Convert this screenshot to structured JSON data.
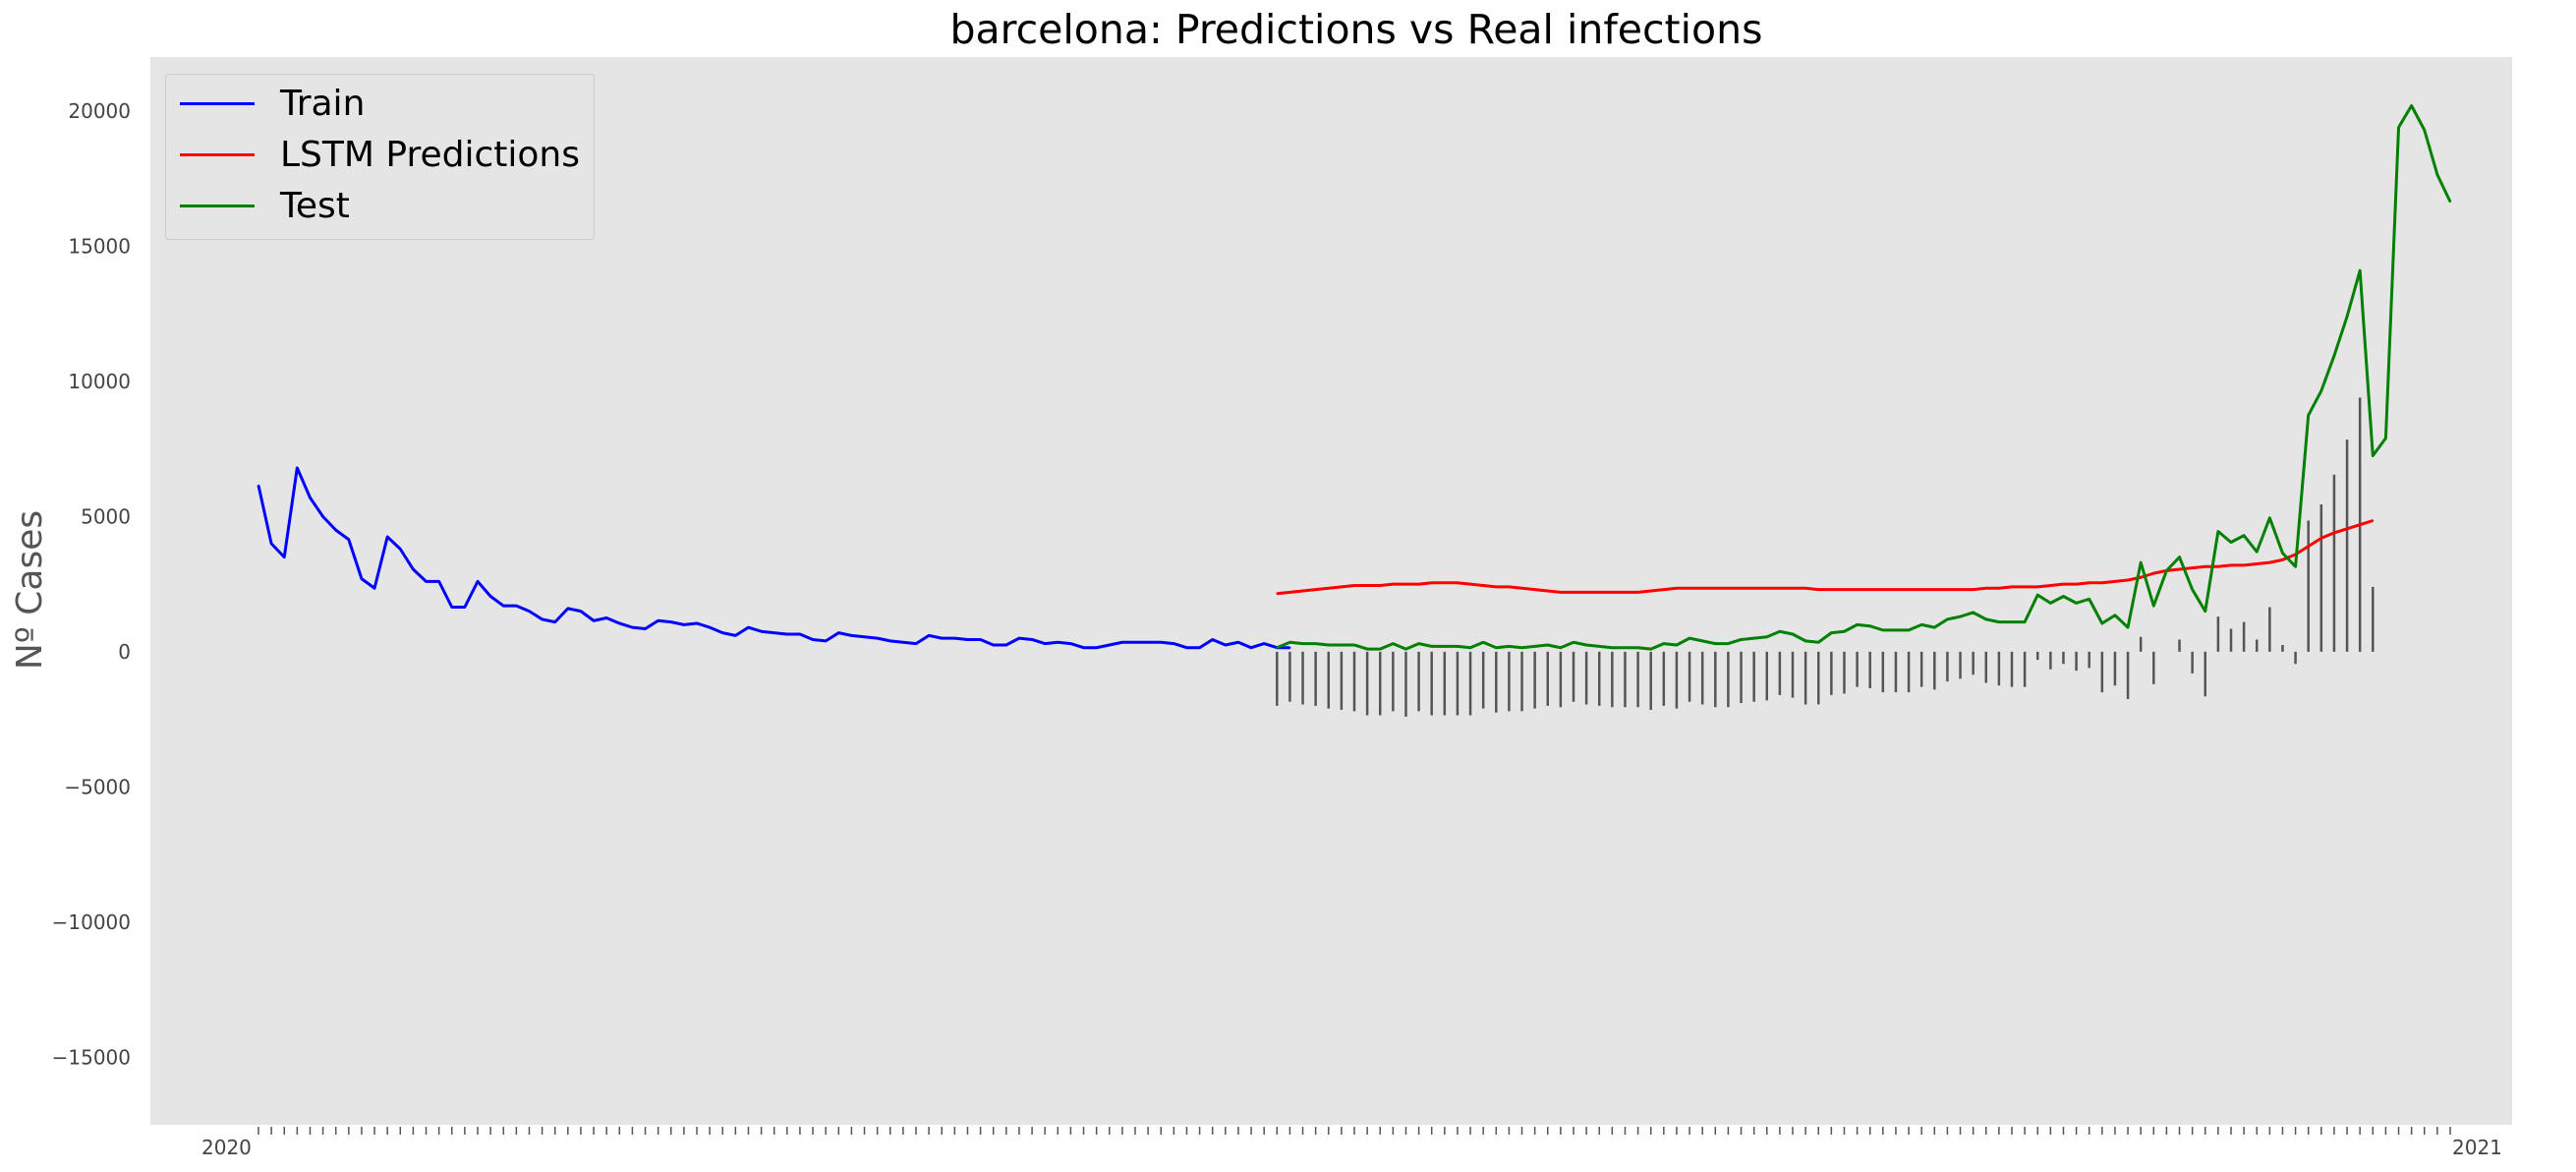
{
  "chart_data": {
    "type": "line",
    "title": "barcelona: Predictions vs Real infections",
    "ylabel": "Nº Cases",
    "xlabel": "",
    "ylim": [
      -17500,
      22000
    ],
    "yticks": [
      -15000,
      -10000,
      -5000,
      0,
      5000,
      10000,
      15000,
      20000
    ],
    "ytick_labels": [
      "−15000",
      "−10000",
      "−5000",
      "0",
      "5000",
      "10000",
      "15000",
      "20000"
    ],
    "x_tick_label_first": "2020",
    "x_tick_label_last": "2021",
    "grid": false,
    "legend_placement": "top-left",
    "colors": {
      "Train": "#0000ff",
      "LSTM Predictions": "#ff0000",
      "Test": "#008000",
      "error_bars": "#555555",
      "plot_background": "#e5e5e5"
    },
    "series": [
      {
        "name": "Train",
        "x_index_start": 0,
        "values": [
          6150,
          4000,
          3500,
          6800,
          5700,
          5000,
          4500,
          4150,
          2700,
          2350,
          4250,
          3800,
          3050,
          2600,
          2600,
          1650,
          1650,
          2600,
          2050,
          1700,
          1700,
          1500,
          1200,
          1100,
          1600,
          1500,
          1150,
          1250,
          1050,
          900,
          850,
          1150,
          1100,
          1000,
          1050,
          900,
          700,
          600,
          900,
          750,
          700,
          650,
          650,
          450,
          400,
          700,
          600,
          550,
          500,
          400,
          350,
          300,
          600,
          500,
          500,
          450,
          450,
          250,
          250,
          500,
          450,
          300,
          350,
          300,
          150,
          150,
          250,
          350,
          350,
          350,
          350,
          300,
          150,
          150,
          450,
          250,
          350,
          150,
          300,
          150,
          150
        ]
      },
      {
        "name": "LSTM Predictions",
        "x_index_start": 79,
        "values": [
          2150,
          2200,
          2250,
          2300,
          2350,
          2400,
          2450,
          2450,
          2450,
          2500,
          2500,
          2500,
          2550,
          2550,
          2550,
          2500,
          2450,
          2400,
          2400,
          2350,
          2300,
          2250,
          2200,
          2200,
          2200,
          2200,
          2200,
          2200,
          2200,
          2250,
          2300,
          2350,
          2350,
          2350,
          2350,
          2350,
          2350,
          2350,
          2350,
          2350,
          2350,
          2350,
          2300,
          2300,
          2300,
          2300,
          2300,
          2300,
          2300,
          2300,
          2300,
          2300,
          2300,
          2300,
          2300,
          2350,
          2350,
          2400,
          2400,
          2400,
          2450,
          2500,
          2500,
          2550,
          2550,
          2600,
          2650,
          2750,
          2900,
          3000,
          3050,
          3100,
          3150,
          3150,
          3200,
          3200,
          3250,
          3300,
          3400,
          3600,
          3900,
          4200,
          4400,
          4550,
          4700,
          4850
        ]
      },
      {
        "name": "Test",
        "x_index_start": 79,
        "values": [
          150,
          350,
          300,
          300,
          250,
          250,
          250,
          100,
          100,
          300,
          100,
          300,
          200,
          200,
          200,
          150,
          350,
          150,
          200,
          150,
          200,
          250,
          150,
          350,
          250,
          200,
          150,
          150,
          150,
          100,
          300,
          250,
          500,
          400,
          300,
          300,
          450,
          500,
          550,
          750,
          650,
          400,
          350,
          700,
          750,
          1000,
          950,
          800,
          800,
          800,
          1000,
          900,
          1200,
          1300,
          1450,
          1200,
          1100,
          1100,
          1100,
          2100,
          1800,
          2050,
          1800,
          1950,
          1050,
          1350,
          900,
          3300,
          1700,
          3000,
          3500,
          2300,
          1500,
          4450,
          4050,
          4300,
          3700,
          4950,
          3650,
          3150,
          8750,
          9650,
          10950,
          12400,
          14100,
          7250,
          7900,
          19400,
          20200,
          19300,
          17650,
          16650
        ]
      }
    ]
  }
}
